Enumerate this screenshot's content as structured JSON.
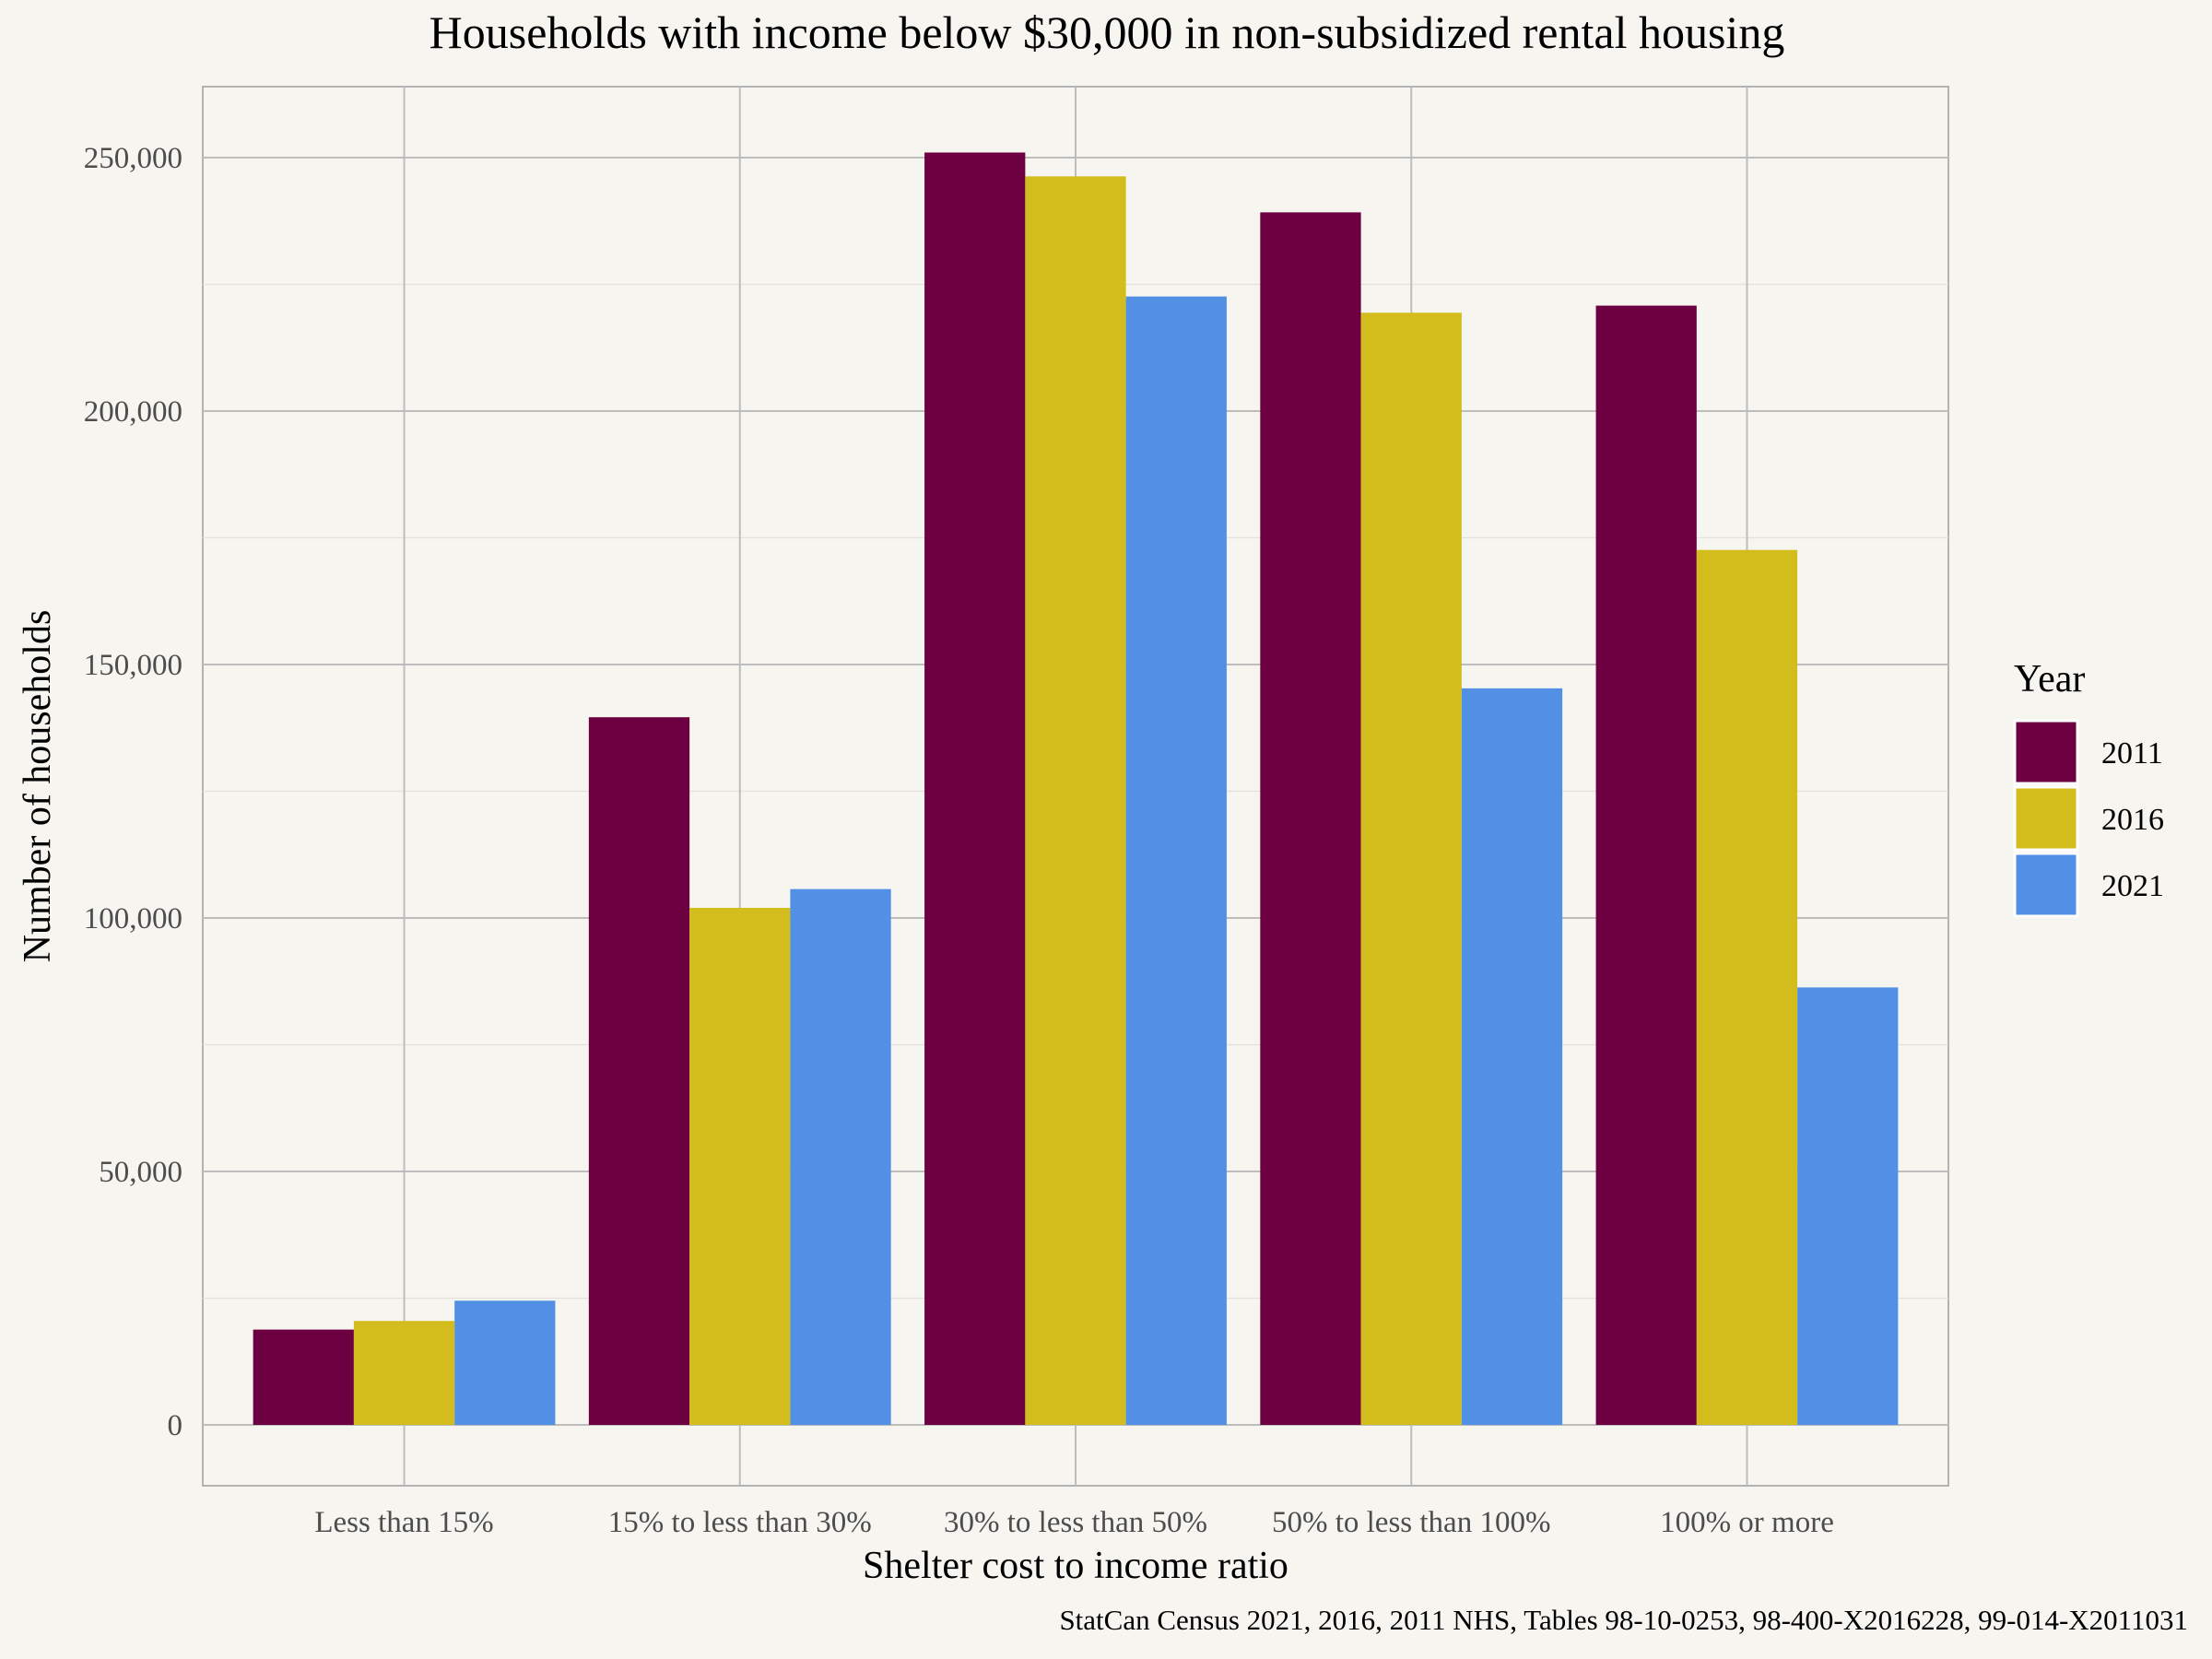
{
  "chart_data": {
    "type": "bar",
    "title": "Households with income below $30,000 in non-subsidized rental housing",
    "xlabel": "Shelter cost to income ratio",
    "ylabel": "Number of households",
    "caption": "StatCan Census 2021, 2016, 2011 NHS, Tables 98-10-0253, 98-400-X2016228, 99-014-X2011031",
    "legend_title": "Year",
    "legend_position": "right",
    "grid": true,
    "ylim": [
      -12000,
      264000
    ],
    "yticks": [
      0,
      50000,
      100000,
      150000,
      200000,
      250000
    ],
    "ytick_labels": [
      "0",
      "50,000",
      "100,000",
      "150,000",
      "200,000",
      "250,000"
    ],
    "categories": [
      "Less than 15%",
      "15% to less than 30%",
      "30% to less than 50%",
      "50% to less than 100%",
      "100% or more"
    ],
    "series": [
      {
        "name": "2011",
        "color": "#6d0040",
        "values": [
          18800,
          139600,
          251000,
          239200,
          220800
        ]
      },
      {
        "name": "2016",
        "color": "#d2bd1d",
        "values": [
          20500,
          102000,
          246300,
          219400,
          172600
        ]
      },
      {
        "name": "2021",
        "color": "#5190e5",
        "values": [
          24500,
          105700,
          222600,
          145300,
          86300
        ]
      }
    ]
  }
}
